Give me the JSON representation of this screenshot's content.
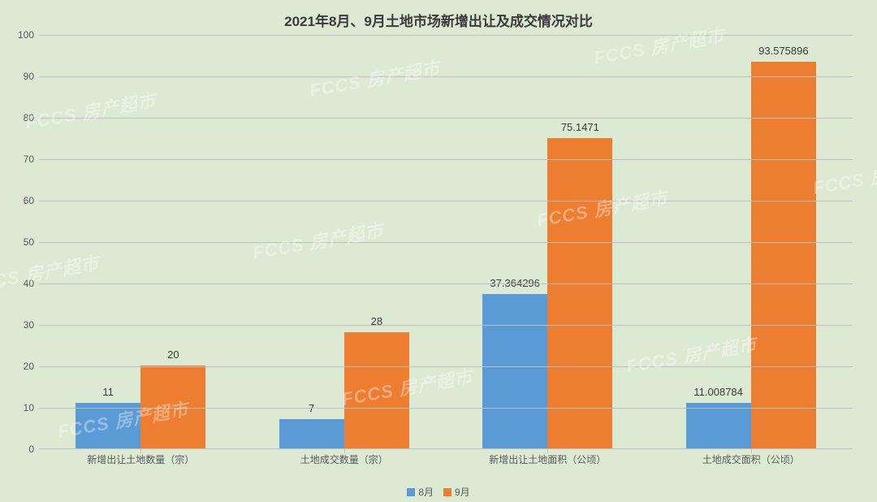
{
  "chart": {
    "type": "bar",
    "title": "2021年8月、9月土地市场新增出让及成交情况对比",
    "title_fontsize": 17,
    "title_weight": "bold",
    "background_color": "#dcead3",
    "grid_color": "#bfbfbf",
    "axis_font_color": "#595959",
    "axis_fontsize": 12,
    "data_label_fontsize": 13,
    "data_label_color": "#3a3a3a",
    "ylim": [
      0,
      100
    ],
    "ytick_step": 10,
    "categories": [
      "新增出让土地数量（宗）",
      "土地成交数量（宗）",
      "新增出让土地面积（公顷）",
      "土地成交面积（公顷）"
    ],
    "series": [
      {
        "name": "8月",
        "color": "#5b9bd5",
        "values": [
          11,
          7,
          37.364296,
          11.008784
        ]
      },
      {
        "name": "9月",
        "color": "#ed7d31",
        "values": [
          20,
          28,
          75.1471,
          93.575896
        ]
      }
    ],
    "bar_width_pct": 8.0,
    "group_gap_pct": 25.0,
    "legend_position": "bottom"
  },
  "watermark": {
    "text": "FCCS 房产超市",
    "color_rgba": "rgba(255,255,255,0.35)",
    "fontsize": 22,
    "rotation_deg": -10
  }
}
